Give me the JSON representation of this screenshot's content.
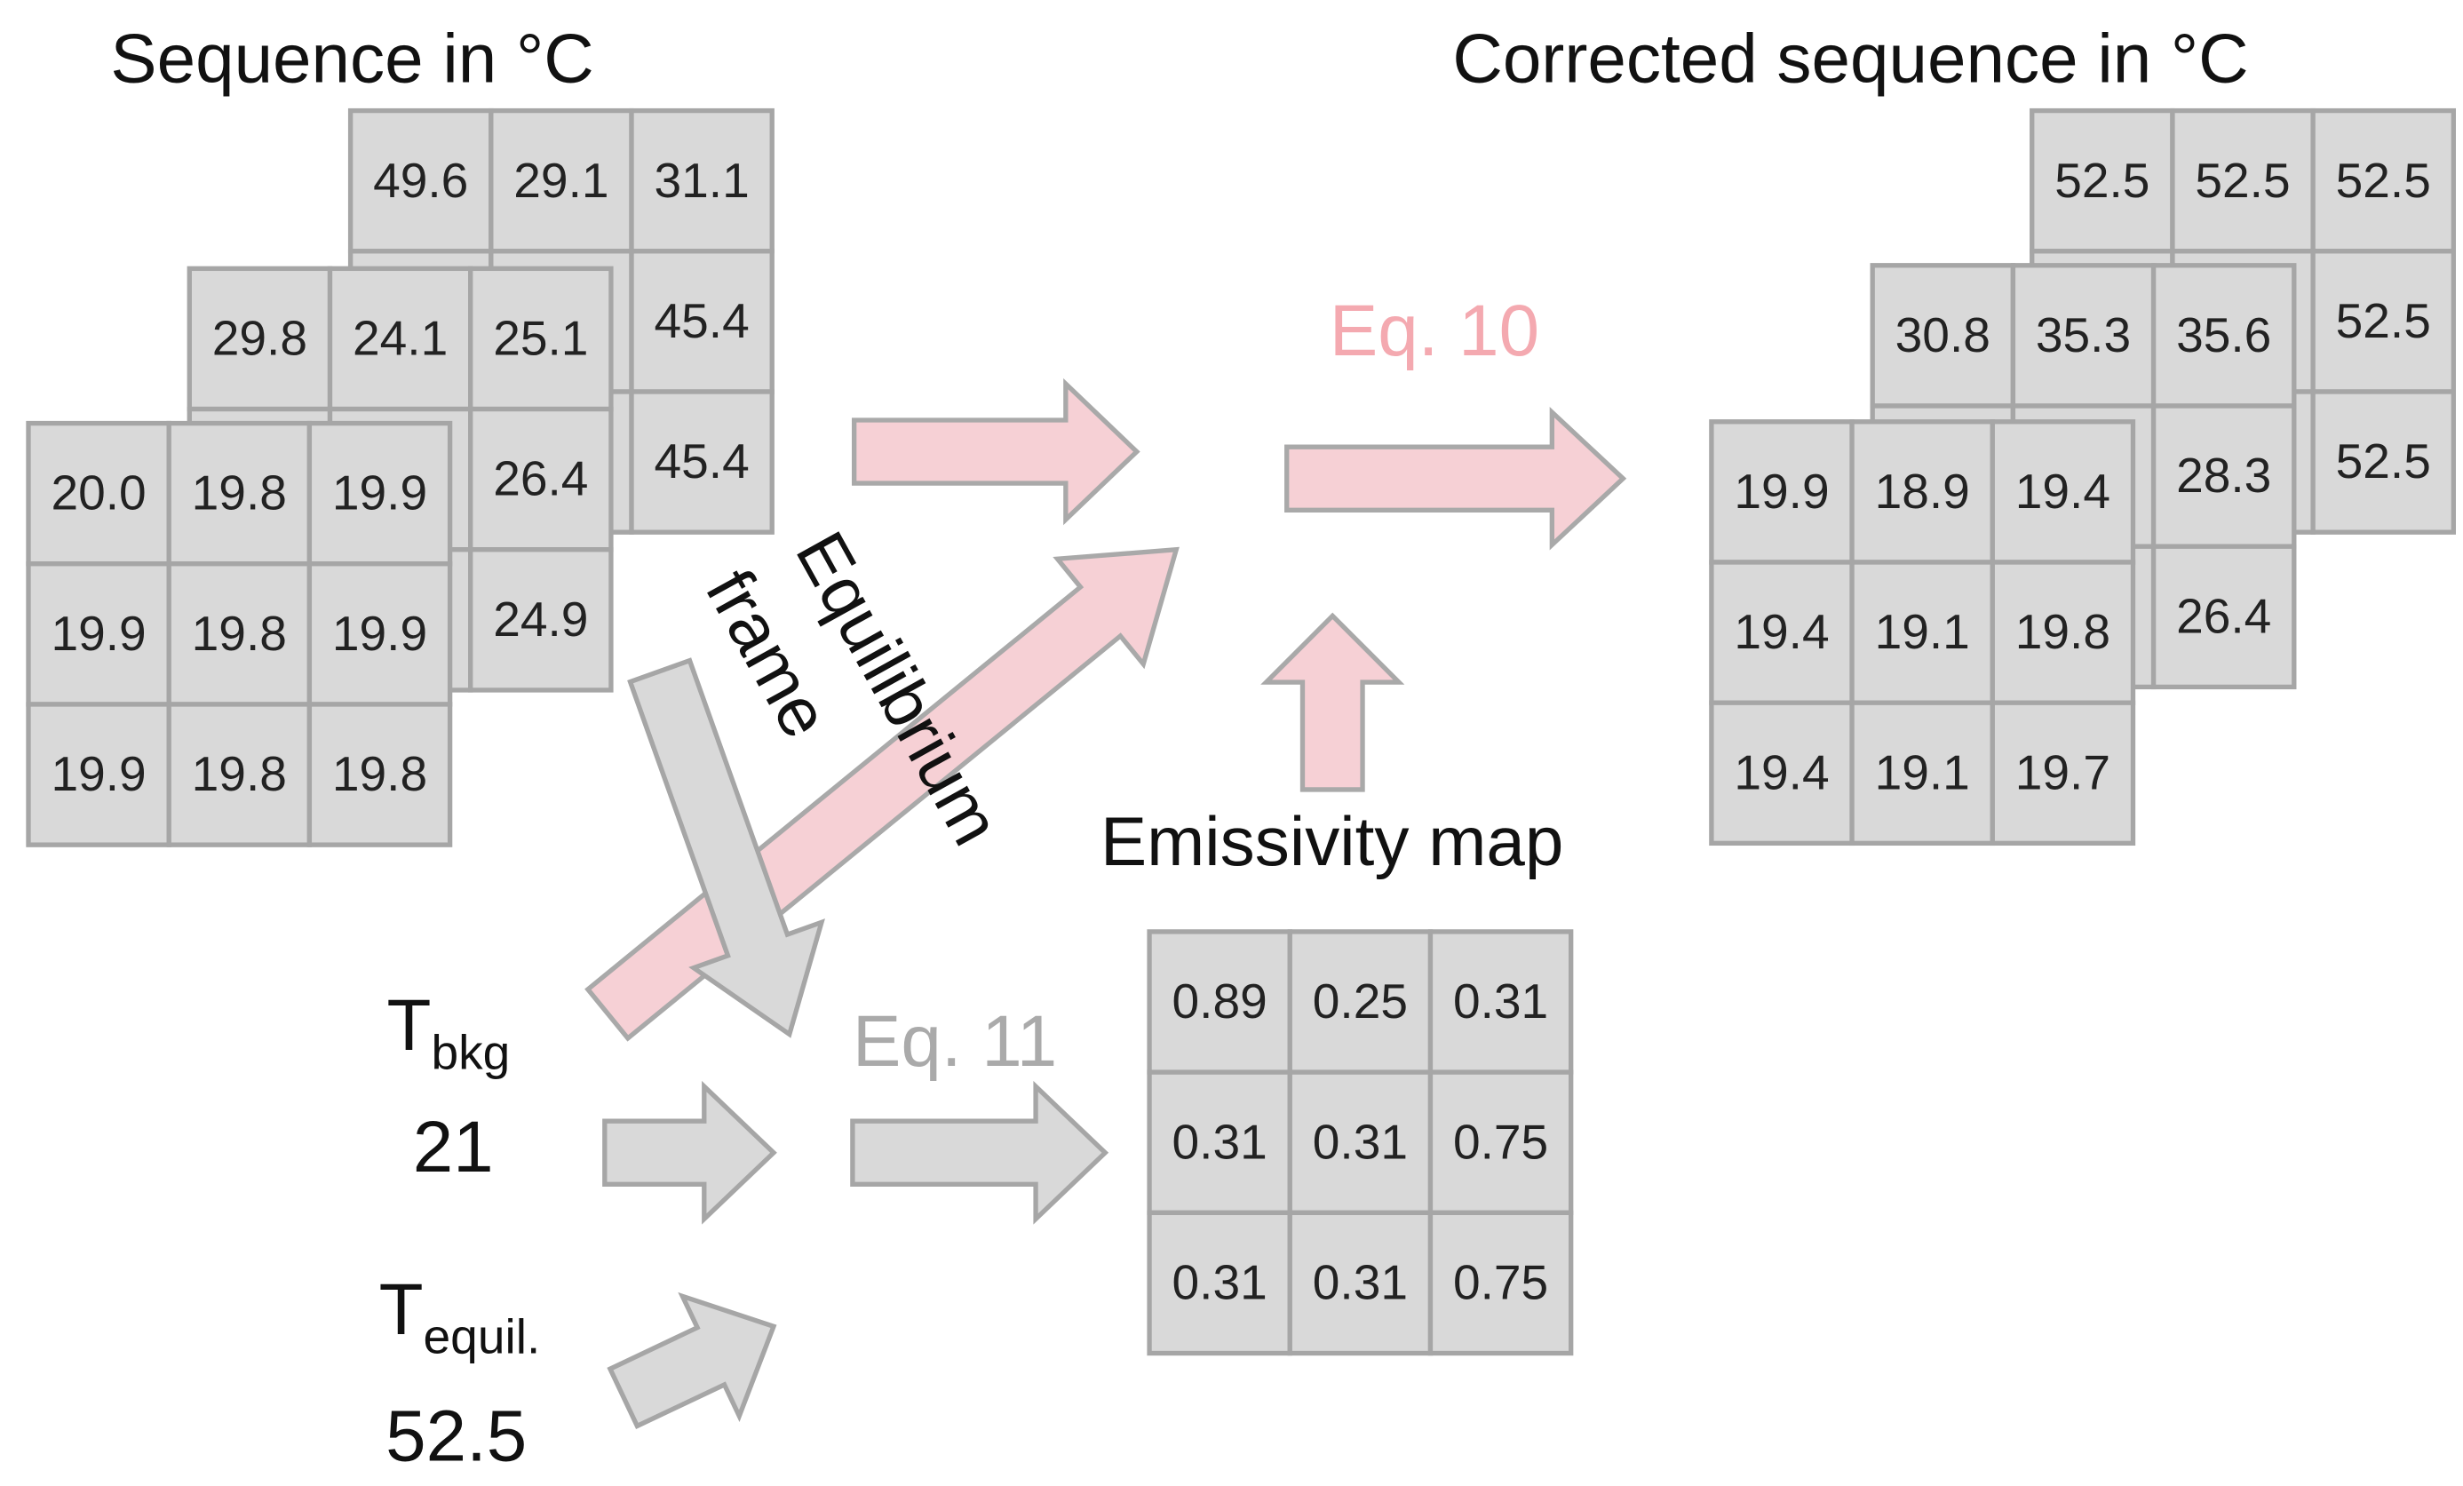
{
  "sequence": {
    "title": "Sequence in °C",
    "frames": [
      {
        "rows": [
          [
            "49.6",
            "29.1",
            "31.1"
          ],
          [
            null,
            null,
            "45.4"
          ],
          [
            null,
            null,
            "45.4"
          ]
        ]
      },
      {
        "rows": [
          [
            "29.8",
            "24.1",
            "25.1"
          ],
          [
            null,
            null,
            "26.4"
          ],
          [
            null,
            null,
            "24.9"
          ]
        ]
      },
      {
        "rows": [
          [
            "20.0",
            "19.8",
            "19.9"
          ],
          [
            "19.9",
            "19.8",
            "19.9"
          ],
          [
            "19.9",
            "19.8",
            "19.8"
          ]
        ]
      }
    ]
  },
  "corrected": {
    "title": "Corrected sequence in °C",
    "frames": [
      {
        "rows": [
          [
            "52.5",
            "52.5",
            "52.5"
          ],
          [
            null,
            null,
            "52.5"
          ],
          [
            null,
            null,
            "52.5"
          ]
        ]
      },
      {
        "rows": [
          [
            "30.8",
            "35.3",
            "35.6"
          ],
          [
            null,
            null,
            "28.3"
          ],
          [
            null,
            null,
            "26.4"
          ]
        ]
      },
      {
        "rows": [
          [
            "19.9",
            "18.9",
            "19.4"
          ],
          [
            "19.4",
            "19.1",
            "19.8"
          ],
          [
            "19.4",
            "19.1",
            "19.7"
          ]
        ]
      }
    ]
  },
  "emissivity": {
    "title": "Emissivity map",
    "rows": [
      [
        "0.89",
        "0.25",
        "0.31"
      ],
      [
        "0.31",
        "0.31",
        "0.75"
      ],
      [
        "0.31",
        "0.31",
        "0.75"
      ]
    ]
  },
  "eq10": "Eq. 10",
  "eq11": "Eq. 11",
  "equilibrium_frame": [
    "Equilibrium",
    "frame"
  ],
  "t_bkg": {
    "symbol": "T",
    "subscript": "bkg",
    "value": "21"
  },
  "t_equil": {
    "symbol": "T",
    "subscript": "equil.",
    "value": "52.5"
  }
}
